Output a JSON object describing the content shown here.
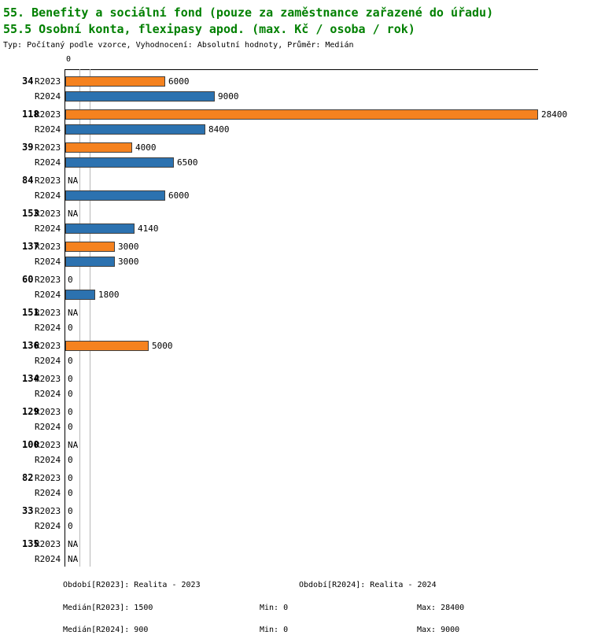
{
  "title_line1": "55. Benefity a sociální fond (pouze za zaměstnance zařazené do úřadu)",
  "title_line2": "55.5 Osobní konta, flexipasy apod. (max. Kč / osoba / rok)",
  "subtitle": "Typ: Počítaný podle vzorce, Vyhodnocení: Absolutní hodnoty, Průměr: Medián",
  "chart_data": {
    "type": "bar",
    "orientation": "horizontal",
    "x_axis_label_zero": "0",
    "xlim": [
      0,
      28400
    ],
    "na_label": "NA",
    "grid": "median lines only",
    "legend_position": "none",
    "categories": [
      "34",
      "118",
      "39",
      "84",
      "153",
      "137",
      "60",
      "151",
      "136",
      "134",
      "129",
      "100",
      "82",
      "33",
      "135"
    ],
    "series": [
      {
        "name": "R2023",
        "color": "#F5821F",
        "values": [
          6000,
          28400,
          4000,
          null,
          null,
          3000,
          0,
          null,
          5000,
          0,
          0,
          null,
          0,
          0,
          null
        ]
      },
      {
        "name": "R2024",
        "color": "#2C72B0",
        "values": [
          9000,
          8400,
          6500,
          6000,
          4140,
          3000,
          1800,
          0,
          0,
          0,
          0,
          0,
          0,
          0,
          null
        ]
      }
    ],
    "median_lines": [
      {
        "series": "R2023",
        "value": 1500
      },
      {
        "series": "R2024",
        "value": 900
      }
    ]
  },
  "footer": {
    "periods": [
      {
        "label": "Období[R2023]:",
        "value": "Realita - 2023"
      },
      {
        "label": "Období[R2024]:",
        "value": "Realita - 2024"
      }
    ],
    "stats": [
      {
        "label": "Medián[R2023]:",
        "value": "1500",
        "min_label": "Min:",
        "min_value": "0",
        "max_label": "Max:",
        "max_value": "28400"
      },
      {
        "label": "Medián[R2024]:",
        "value": "900",
        "min_label": "Min:",
        "min_value": "0",
        "max_label": "Max:",
        "max_value": "9000"
      }
    ]
  }
}
